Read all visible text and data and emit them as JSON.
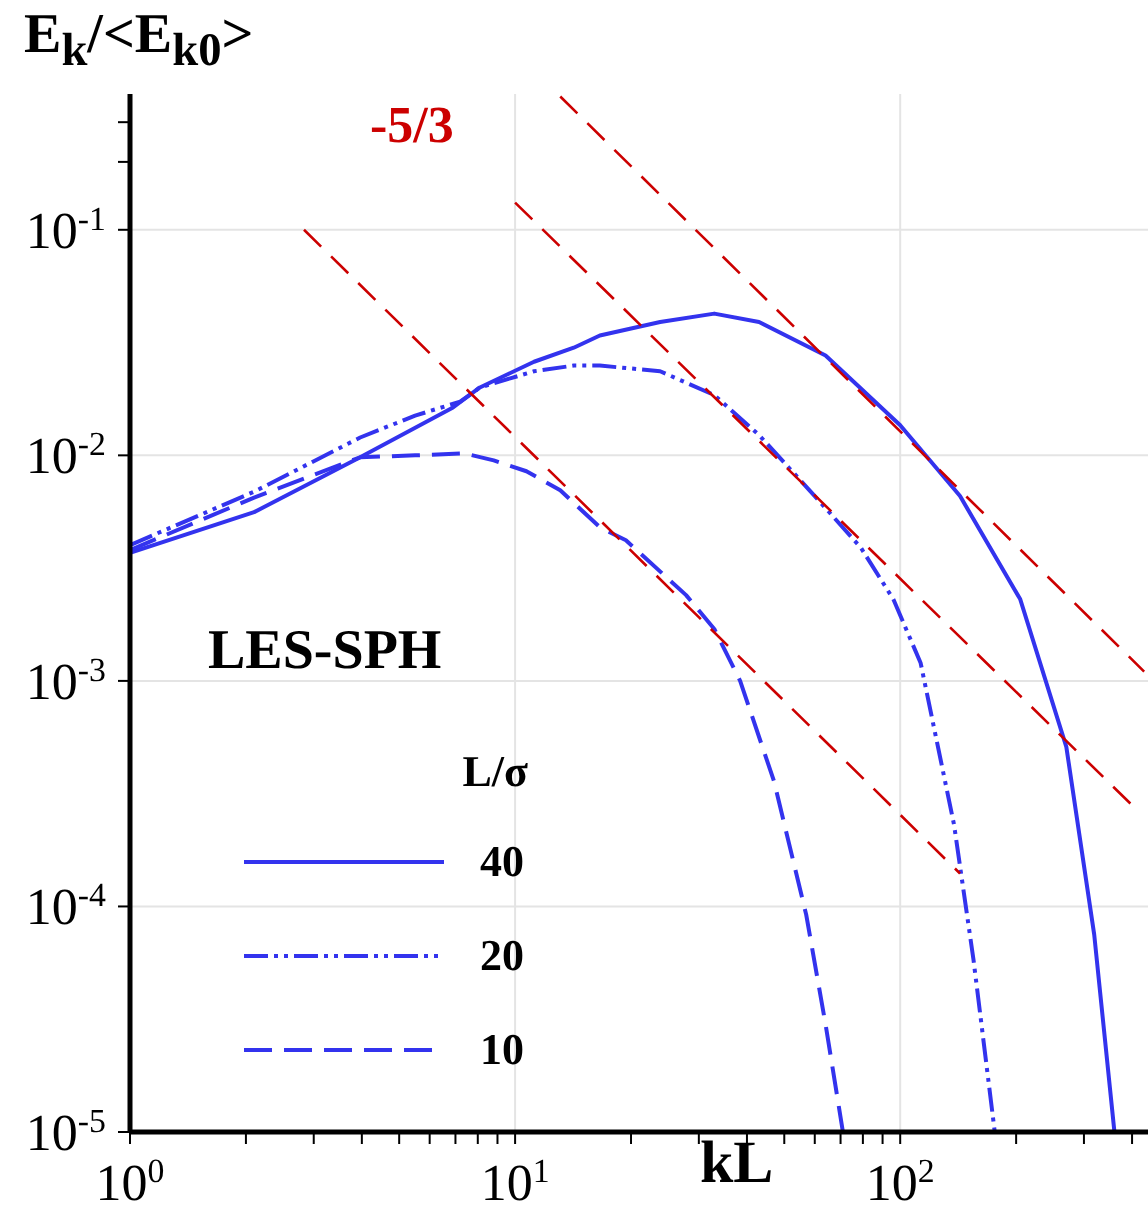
{
  "chart_data": {
    "type": "line",
    "xlabel": "kL",
    "ylabel": "E$_{k}$/<E$_{k0}$>",
    "legend_title": "L/σ",
    "log": "xy",
    "grid": true,
    "legend": "bottom left",
    "xlim": [
      1,
      440
    ],
    "ylim": [
      1e-05,
      0.4
    ],
    "xticks": [
      {
        "value": 1,
        "label": "10$^{0}$"
      },
      {
        "value": 2,
        "label": null
      },
      {
        "value": 3,
        "label": null
      },
      {
        "value": 4,
        "label": null
      },
      {
        "value": 5,
        "label": null
      },
      {
        "value": 6,
        "label": null
      },
      {
        "value": 7,
        "label": null
      },
      {
        "value": 8,
        "label": null
      },
      {
        "value": 9,
        "label": null
      },
      {
        "value": 10,
        "label": "10$^{1}$"
      },
      {
        "value": 20,
        "label": null
      },
      {
        "value": 30,
        "label": null
      },
      {
        "value": 40,
        "label": null
      },
      {
        "value": 50,
        "label": null
      },
      {
        "value": 60,
        "label": null
      },
      {
        "value": 70,
        "label": null
      },
      {
        "value": 80,
        "label": null
      },
      {
        "value": 90,
        "label": null
      },
      {
        "value": 100,
        "label": "10$^{2}$"
      },
      {
        "value": 200,
        "label": null
      },
      {
        "value": 300,
        "label": null
      },
      {
        "value": 400,
        "label": null
      }
    ],
    "yticks": [
      {
        "value": 1e-05,
        "label": "10$^{-5}$"
      },
      {
        "value": 0.0001,
        "label": "10$^{-4}$"
      },
      {
        "value": 0.001,
        "label": "10$^{-3}$"
      },
      {
        "value": 0.01,
        "label": "10$^{-2}$"
      },
      {
        "value": 0.1,
        "label": "10$^{-1}$"
      },
      {
        "value": 0.2,
        "label": null
      },
      {
        "value": 0.3,
        "label": null
      }
    ],
    "series": [
      {
        "name": "40",
        "color": "#3333ee",
        "line_style": "solid",
        "x": [
          1,
          2.1,
          3.96,
          6.9,
          8.1,
          11.2,
          14.2,
          16.6,
          23.8,
          32.9,
          43,
          64,
          100,
          143,
          205,
          270,
          319,
          360
        ],
        "values": [
          0.0037,
          0.0056,
          0.0098,
          0.0163,
          0.02,
          0.026,
          0.03,
          0.034,
          0.039,
          0.0425,
          0.039,
          0.0277,
          0.0136,
          0.0066,
          0.0023,
          0.00051,
          7.5e-05,
          1e-05
        ]
      },
      {
        "name": "20",
        "color": "#3333ee",
        "line_style": "dotted",
        "x": [
          1,
          2.1,
          3.96,
          5.5,
          7.2,
          8.1,
          11.2,
          14.2,
          16.6,
          23.8,
          32.9,
          43,
          60,
          79,
          96,
          113,
          138,
          155,
          176
        ],
        "values": [
          0.004,
          0.0069,
          0.012,
          0.015,
          0.0173,
          0.02,
          0.0236,
          0.025,
          0.025,
          0.0236,
          0.0185,
          0.0123,
          0.0066,
          0.0039,
          0.0023,
          0.0012,
          0.00023,
          5.8e-05,
          1e-05
        ]
      },
      {
        "name": "10",
        "color": "#3333ee",
        "line_style": "dashed",
        "x": [
          1,
          2.1,
          3.96,
          5.5,
          7.4,
          8.8,
          10.7,
          13.1,
          16.6,
          19.4,
          27.8,
          32.9,
          38.4,
          47,
          57,
          64,
          71
        ],
        "values": [
          0.0038,
          0.0065,
          0.0098,
          0.01,
          0.0102,
          0.0095,
          0.0085,
          0.007,
          0.0048,
          0.0042,
          0.0024,
          0.0017,
          0.001,
          0.00036,
          9.2e-05,
          3e-05,
          1e-05
        ]
      },
      {
        "type": "line",
        "color": "#cc0000",
        "line_style": "dashed",
        "x": [
          2.83,
          143
        ],
        "values": [
          0.1,
          0.00014
        ]
      },
      {
        "type": "line",
        "color": "#cc0000",
        "line_style": "dashed",
        "x": [
          10,
          410
        ],
        "values": [
          0.132,
          0.00027
        ]
      },
      {
        "type": "line",
        "color": "#cc0000",
        "line_style": "dashed",
        "x": [
          13.1,
          430
        ],
        "values": [
          0.39,
          0.0011
        ]
      }
    ],
    "annotations": [
      "-5/3",
      "LES-SPH"
    ]
  }
}
